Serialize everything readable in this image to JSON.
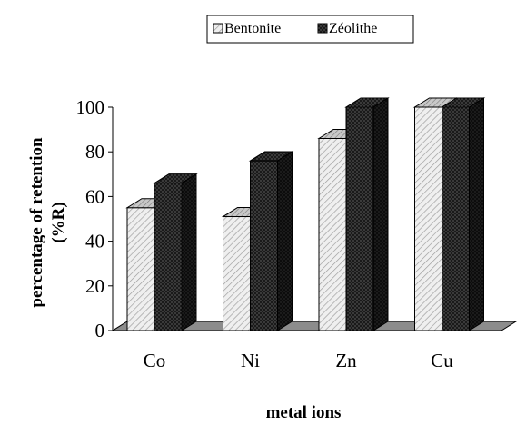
{
  "chart_data": {
    "type": "bar",
    "title": "",
    "categories": [
      "Co",
      "Ni",
      "Zn",
      "Cu"
    ],
    "series": [
      {
        "name": "Bentonite",
        "values": [
          55,
          51,
          86,
          100
        ]
      },
      {
        "name": "Zéolithe",
        "values": [
          66,
          76,
          100,
          100
        ]
      }
    ],
    "xlabel": "metal ions",
    "ylabel_line1": "percentage of retention",
    "ylabel_line2": "(%R)",
    "ylim": [
      0,
      100
    ],
    "yticks": [
      0,
      20,
      40,
      60,
      80,
      100
    ],
    "legend_position": "top",
    "grid": false,
    "style": "3d-clustered-column"
  },
  "colors": {
    "bentonite": "#ececec",
    "zeolithe": "#1e1e1e",
    "floor": "#8c8c8c",
    "axis": "#000000"
  }
}
